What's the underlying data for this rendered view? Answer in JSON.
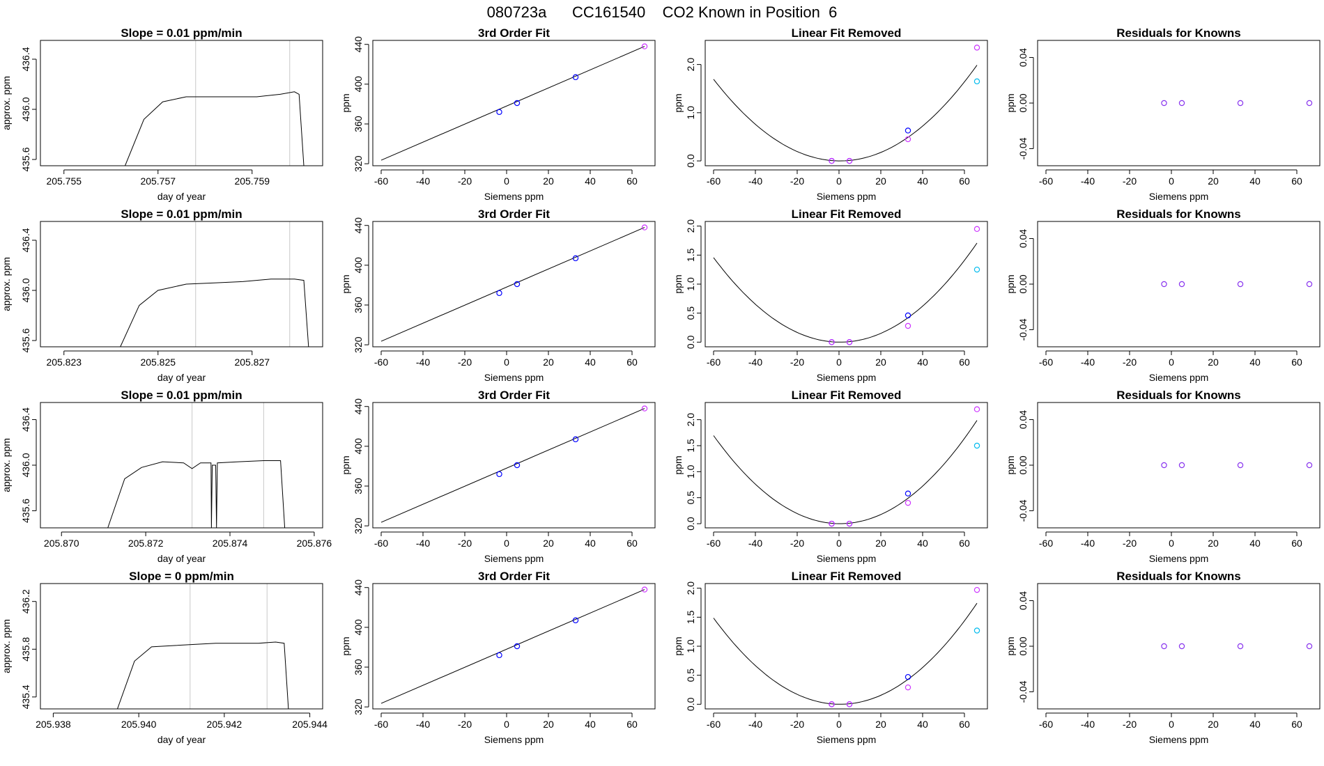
{
  "figure_title": "080723a      CC161540    CO2 Known in Position  6",
  "chart_data": [
    {
      "type": "line",
      "title": "Slope =  0.01  ppm/min",
      "xlabel": "day of year",
      "ylabel": "approx. ppm",
      "xlim": [
        205.7545,
        205.7605
      ],
      "ylim": [
        435.55,
        436.55
      ],
      "xticks": [
        205.755,
        205.757,
        205.759
      ],
      "xtick_labels": [
        "205.755",
        "205.757",
        "205.759"
      ],
      "yticks": [
        435.6,
        436.0,
        436.4
      ],
      "ytick_labels": [
        "435.6",
        "436.0",
        "436.4"
      ],
      "vlines": [
        205.7578,
        205.7598
      ],
      "series": [
        {
          "x": [
            205.7563,
            205.7567,
            205.7571,
            205.7576,
            205.7581,
            205.7586,
            205.7591,
            205.7596,
            205.7599,
            205.76,
            205.7601
          ],
          "y": [
            435.55,
            435.92,
            436.06,
            436.1,
            436.1,
            436.1,
            436.1,
            436.12,
            436.14,
            436.12,
            435.55
          ]
        }
      ]
    },
    {
      "type": "scatter",
      "title": "3rd Order Fit",
      "xlabel": "Siemens ppm",
      "ylabel": "ppm",
      "xlim": [
        -64,
        71
      ],
      "ylim": [
        318,
        444
      ],
      "xticks": [
        -60,
        -40,
        -20,
        0,
        20,
        40,
        60
      ],
      "xtick_labels": [
        "-60",
        "-40",
        "-20",
        "0",
        "20",
        "40",
        "60"
      ],
      "yticks": [
        320,
        360,
        400,
        440
      ],
      "ytick_labels": [
        "320",
        "360",
        "400",
        "440"
      ],
      "curve": {
        "x": [
          -60,
          66
        ],
        "y": [
          323.5,
          438
        ]
      },
      "points": [
        {
          "x": -3.5,
          "y": 372,
          "color": "#0000ff"
        },
        {
          "x": 5,
          "y": 381,
          "color": "#0000ff"
        },
        {
          "x": 33,
          "y": 407,
          "color": "#0000ff"
        },
        {
          "x": 66,
          "y": 438,
          "color": "#cc33ff"
        }
      ]
    },
    {
      "type": "scatter",
      "title": "Linear Fit Removed",
      "xlabel": "Siemens ppm",
      "ylabel": "ppm",
      "xlim": [
        -64,
        71
      ],
      "ylim": [
        -0.1,
        2.5
      ],
      "xticks": [
        -60,
        -40,
        -20,
        0,
        20,
        40,
        60
      ],
      "xtick_labels": [
        "-60",
        "-40",
        "-20",
        "0",
        "20",
        "40",
        "60"
      ],
      "yticks": [
        0.0,
        1.0,
        2.0
      ],
      "ytick_labels": [
        "0.0",
        "1.0",
        "2.0"
      ],
      "curve": {
        "a": 0.000463,
        "vertex": 0.5,
        "x": [
          -60,
          66
        ]
      },
      "points": [
        {
          "x": -3.5,
          "y": 0.0,
          "color": "#0000ff"
        },
        {
          "x": -3.5,
          "y": 0.0,
          "color": "#cc33ff"
        },
        {
          "x": 5,
          "y": 0.0,
          "color": "#0000ff"
        },
        {
          "x": 5,
          "y": 0.0,
          "color": "#cc33ff"
        },
        {
          "x": 33,
          "y": 0.63,
          "color": "#0000ff"
        },
        {
          "x": 33,
          "y": 0.45,
          "color": "#cc33ff"
        },
        {
          "x": 66,
          "y": 2.35,
          "color": "#cc33ff"
        },
        {
          "x": 66,
          "y": 1.65,
          "color": "#00bbee"
        }
      ]
    },
    {
      "type": "scatter",
      "title": "Residuals for Knowns",
      "xlabel": "Siemens ppm",
      "ylabel": "ppm",
      "xlim": [
        -64,
        71
      ],
      "ylim": [
        -0.055,
        0.055
      ],
      "xticks": [
        -60,
        -40,
        -20,
        0,
        20,
        40,
        60
      ],
      "xtick_labels": [
        "-60",
        "-40",
        "-20",
        "0",
        "20",
        "40",
        "60"
      ],
      "yticks": [
        -0.04,
        0.0,
        0.04
      ],
      "ytick_labels": [
        "-0.04",
        "0.00",
        "0.04"
      ],
      "points": [
        {
          "x": -3.5,
          "y": 0,
          "color": "#8833ee"
        },
        {
          "x": 5,
          "y": 0,
          "color": "#8833ee"
        },
        {
          "x": 33,
          "y": 0,
          "color": "#8833ee"
        },
        {
          "x": 66,
          "y": 0,
          "color": "#8833ee"
        }
      ]
    },
    {
      "type": "line",
      "title": "Slope =  0.01  ppm/min",
      "xlabel": "day of year",
      "ylabel": "approx. ppm",
      "xlim": [
        205.8225,
        205.8285
      ],
      "ylim": [
        435.55,
        436.55
      ],
      "xticks": [
        205.823,
        205.825,
        205.827
      ],
      "xtick_labels": [
        "205.823",
        "205.825",
        "205.827"
      ],
      "yticks": [
        435.6,
        436.0,
        436.4
      ],
      "ytick_labels": [
        "435.6",
        "436.0",
        "436.4"
      ],
      "vlines": [
        205.8258,
        205.8278
      ],
      "series": [
        {
          "x": [
            205.8242,
            205.8246,
            205.825,
            205.8256,
            205.8262,
            205.8268,
            205.8274,
            205.8279,
            205.8281,
            205.8282
          ],
          "y": [
            435.55,
            435.88,
            436.0,
            436.05,
            436.06,
            436.07,
            436.09,
            436.09,
            436.08,
            435.55
          ]
        }
      ]
    },
    {
      "type": "scatter",
      "title": "3rd Order Fit",
      "xlabel": "Siemens ppm",
      "ylabel": "ppm",
      "xlim": [
        -64,
        71
      ],
      "ylim": [
        318,
        444
      ],
      "xticks": [
        -60,
        -40,
        -20,
        0,
        20,
        40,
        60
      ],
      "xtick_labels": [
        "-60",
        "-40",
        "-20",
        "0",
        "20",
        "40",
        "60"
      ],
      "yticks": [
        320,
        360,
        400,
        440
      ],
      "ytick_labels": [
        "320",
        "360",
        "400",
        "440"
      ],
      "curve": {
        "x": [
          -60,
          66
        ],
        "y": [
          323.5,
          438
        ]
      },
      "points": [
        {
          "x": -3.5,
          "y": 372,
          "color": "#0000ff"
        },
        {
          "x": 5,
          "y": 381,
          "color": "#0000ff"
        },
        {
          "x": 33,
          "y": 407,
          "color": "#0000ff"
        },
        {
          "x": 66,
          "y": 438,
          "color": "#cc33ff"
        }
      ]
    },
    {
      "type": "scatter",
      "title": "Linear Fit Removed",
      "xlabel": "Siemens ppm",
      "ylabel": "ppm",
      "xlim": [
        -64,
        71
      ],
      "ylim": [
        -0.08,
        2.08
      ],
      "xticks": [
        -60,
        -40,
        -20,
        0,
        20,
        40,
        60
      ],
      "xtick_labels": [
        "-60",
        "-40",
        "-20",
        "0",
        "20",
        "40",
        "60"
      ],
      "yticks": [
        0.0,
        0.5,
        1.0,
        1.5,
        2.0
      ],
      "ytick_labels": [
        "0.0",
        "0.5",
        "1.0",
        "1.5",
        "2.0"
      ],
      "curve": {
        "a": 0.000398,
        "vertex": 0.5,
        "x": [
          -60,
          66
        ]
      },
      "points": [
        {
          "x": -3.5,
          "y": 0.0,
          "color": "#0000ff"
        },
        {
          "x": -3.5,
          "y": 0.0,
          "color": "#cc33ff"
        },
        {
          "x": 5,
          "y": 0.0,
          "color": "#0000ff"
        },
        {
          "x": 5,
          "y": 0.0,
          "color": "#cc33ff"
        },
        {
          "x": 33,
          "y": 0.46,
          "color": "#0000ff"
        },
        {
          "x": 33,
          "y": 0.28,
          "color": "#cc33ff"
        },
        {
          "x": 66,
          "y": 1.95,
          "color": "#cc33ff"
        },
        {
          "x": 66,
          "y": 1.25,
          "color": "#00bbee"
        }
      ]
    },
    {
      "type": "scatter",
      "title": "Residuals for Knowns",
      "xlabel": "Siemens ppm",
      "ylabel": "ppm",
      "xlim": [
        -64,
        71
      ],
      "ylim": [
        -0.055,
        0.055
      ],
      "xticks": [
        -60,
        -40,
        -20,
        0,
        20,
        40,
        60
      ],
      "xtick_labels": [
        "-60",
        "-40",
        "-20",
        "0",
        "20",
        "40",
        "60"
      ],
      "yticks": [
        -0.04,
        0.0,
        0.04
      ],
      "ytick_labels": [
        "-0.04",
        "0.00",
        "0.04"
      ],
      "points": [
        {
          "x": -3.5,
          "y": 0,
          "color": "#8833ee"
        },
        {
          "x": 5,
          "y": 0,
          "color": "#8833ee"
        },
        {
          "x": 33,
          "y": 0,
          "color": "#8833ee"
        },
        {
          "x": 66,
          "y": 0,
          "color": "#8833ee"
        }
      ]
    },
    {
      "type": "line",
      "title": "Slope =  0.01  ppm/min",
      "xlabel": "day of year",
      "ylabel": "approx. ppm",
      "xlim": [
        205.8695,
        205.8762
      ],
      "ylim": [
        435.45,
        436.55
      ],
      "xticks": [
        205.87,
        205.872,
        205.874,
        205.876
      ],
      "xtick_labels": [
        "205.870",
        "205.872",
        "205.874",
        "205.876"
      ],
      "yticks": [
        435.6,
        436.0,
        436.4
      ],
      "ytick_labels": [
        "435.6",
        "436.0",
        "436.4"
      ],
      "vlines": [
        205.8731,
        205.8748
      ],
      "series": [
        {
          "x": [
            205.8711,
            205.8715,
            205.8719,
            205.8724,
            205.8729,
            205.8731,
            205.8733,
            205.87355,
            205.87356,
            205.87358,
            205.87366,
            205.87368,
            205.8737,
            205.8742,
            205.8748,
            205.8752,
            205.8753
          ],
          "y": [
            435.45,
            435.88,
            435.98,
            436.03,
            436.02,
            435.97,
            436.02,
            436.02,
            435.45,
            436.0,
            436.0,
            435.45,
            436.02,
            436.03,
            436.04,
            436.04,
            435.45
          ]
        }
      ]
    },
    {
      "type": "scatter",
      "title": "3rd Order Fit",
      "xlabel": "Siemens ppm",
      "ylabel": "ppm",
      "xlim": [
        -64,
        71
      ],
      "ylim": [
        318,
        444
      ],
      "xticks": [
        -60,
        -40,
        -20,
        0,
        20,
        40,
        60
      ],
      "xtick_labels": [
        "-60",
        "-40",
        "-20",
        "0",
        "20",
        "40",
        "60"
      ],
      "yticks": [
        320,
        360,
        400,
        440
      ],
      "ytick_labels": [
        "320",
        "360",
        "400",
        "440"
      ],
      "curve": {
        "x": [
          -60,
          66
        ],
        "y": [
          323.5,
          438
        ]
      },
      "points": [
        {
          "x": -3.5,
          "y": 372,
          "color": "#0000ff"
        },
        {
          "x": 5,
          "y": 381,
          "color": "#0000ff"
        },
        {
          "x": 33,
          "y": 407,
          "color": "#0000ff"
        },
        {
          "x": 66,
          "y": 438,
          "color": "#cc33ff"
        }
      ]
    },
    {
      "type": "scatter",
      "title": "Linear Fit Removed",
      "xlabel": "Siemens ppm",
      "ylabel": "ppm",
      "xlim": [
        -64,
        71
      ],
      "ylim": [
        -0.08,
        2.33
      ],
      "xticks": [
        -60,
        -40,
        -20,
        0,
        20,
        40,
        60
      ],
      "xtick_labels": [
        "-60",
        "-40",
        "-20",
        "0",
        "20",
        "40",
        "60"
      ],
      "yticks": [
        0.0,
        0.5,
        1.0,
        1.5,
        2.0
      ],
      "ytick_labels": [
        "0.0",
        "0.5",
        "1.0",
        "1.5",
        "2.0"
      ],
      "curve": {
        "a": 0.000463,
        "vertex": 0.5,
        "x": [
          -60,
          66
        ]
      },
      "points": [
        {
          "x": -3.5,
          "y": 0.0,
          "color": "#0000ff"
        },
        {
          "x": -3.5,
          "y": 0.0,
          "color": "#cc33ff"
        },
        {
          "x": 5,
          "y": 0.0,
          "color": "#0000ff"
        },
        {
          "x": 5,
          "y": 0.0,
          "color": "#cc33ff"
        },
        {
          "x": 33,
          "y": 0.58,
          "color": "#0000ff"
        },
        {
          "x": 33,
          "y": 0.4,
          "color": "#cc33ff"
        },
        {
          "x": 66,
          "y": 2.2,
          "color": "#cc33ff"
        },
        {
          "x": 66,
          "y": 1.5,
          "color": "#00bbee"
        }
      ]
    },
    {
      "type": "scatter",
      "title": "Residuals for Knowns",
      "xlabel": "Siemens ppm",
      "ylabel": "ppm",
      "xlim": [
        -64,
        71
      ],
      "ylim": [
        -0.055,
        0.055
      ],
      "xticks": [
        -60,
        -40,
        -20,
        0,
        20,
        40,
        60
      ],
      "xtick_labels": [
        "-60",
        "-40",
        "-20",
        "0",
        "20",
        "40",
        "60"
      ],
      "yticks": [
        -0.04,
        0.0,
        0.04
      ],
      "ytick_labels": [
        "-0.04",
        "0.00",
        "0.04"
      ],
      "points": [
        {
          "x": -3.5,
          "y": 0,
          "color": "#8833ee"
        },
        {
          "x": 5,
          "y": 0,
          "color": "#8833ee"
        },
        {
          "x": 33,
          "y": 0,
          "color": "#8833ee"
        },
        {
          "x": 66,
          "y": 0,
          "color": "#8833ee"
        }
      ]
    },
    {
      "type": "line",
      "title": "Slope =  0  ppm/min",
      "xlabel": "day of year",
      "ylabel": "approx. ppm",
      "xlim": [
        205.9377,
        205.9443
      ],
      "ylim": [
        435.3,
        436.35
      ],
      "xticks": [
        205.938,
        205.94,
        205.942,
        205.944
      ],
      "xtick_labels": [
        "205.938",
        "205.940",
        "205.942",
        "205.944"
      ],
      "yticks": [
        435.4,
        435.8,
        436.2
      ],
      "ytick_labels": [
        "435.4",
        "435.8",
        "436.2"
      ],
      "vlines": [
        205.9412,
        205.943
      ],
      "series": [
        {
          "x": [
            205.9395,
            205.9399,
            205.9403,
            205.9408,
            205.9413,
            205.9418,
            205.9423,
            205.9428,
            205.9432,
            205.9434,
            205.9435
          ],
          "y": [
            435.3,
            435.7,
            435.82,
            435.83,
            435.84,
            435.85,
            435.85,
            435.85,
            435.86,
            435.85,
            435.3
          ]
        }
      ]
    },
    {
      "type": "scatter",
      "title": "3rd Order Fit",
      "xlabel": "Siemens ppm",
      "ylabel": "ppm",
      "xlim": [
        -64,
        71
      ],
      "ylim": [
        318,
        444
      ],
      "xticks": [
        -60,
        -40,
        -20,
        0,
        20,
        40,
        60
      ],
      "xtick_labels": [
        "-60",
        "-40",
        "-20",
        "0",
        "20",
        "40",
        "60"
      ],
      "yticks": [
        320,
        360,
        400,
        440
      ],
      "ytick_labels": [
        "320",
        "360",
        "400",
        "440"
      ],
      "curve": {
        "x": [
          -60,
          66
        ],
        "y": [
          323.5,
          438
        ]
      },
      "points": [
        {
          "x": -3.5,
          "y": 372,
          "color": "#0000ff"
        },
        {
          "x": 5,
          "y": 381,
          "color": "#0000ff"
        },
        {
          "x": 33,
          "y": 407,
          "color": "#0000ff"
        },
        {
          "x": 66,
          "y": 438,
          "color": "#cc33ff"
        }
      ]
    },
    {
      "type": "scatter",
      "title": "Linear Fit Removed",
      "xlabel": "Siemens ppm",
      "ylabel": "ppm",
      "xlim": [
        -64,
        71
      ],
      "ylim": [
        -0.08,
        2.08
      ],
      "xticks": [
        -60,
        -40,
        -20,
        0,
        20,
        40,
        60
      ],
      "xtick_labels": [
        "-60",
        "-40",
        "-20",
        "0",
        "20",
        "40",
        "60"
      ],
      "yticks": [
        0.0,
        0.5,
        1.0,
        1.5,
        2.0
      ],
      "ytick_labels": [
        "0.0",
        "0.5",
        "1.0",
        "1.5",
        "2.0"
      ],
      "curve": {
        "a": 0.000406,
        "vertex": 0.5,
        "x": [
          -60,
          66
        ]
      },
      "points": [
        {
          "x": -3.5,
          "y": 0.0,
          "color": "#0000ff"
        },
        {
          "x": -3.5,
          "y": 0.0,
          "color": "#cc33ff"
        },
        {
          "x": 5,
          "y": 0.0,
          "color": "#0000ff"
        },
        {
          "x": 5,
          "y": 0.0,
          "color": "#cc33ff"
        },
        {
          "x": 33,
          "y": 0.47,
          "color": "#0000ff"
        },
        {
          "x": 33,
          "y": 0.29,
          "color": "#cc33ff"
        },
        {
          "x": 66,
          "y": 1.97,
          "color": "#cc33ff"
        },
        {
          "x": 66,
          "y": 1.27,
          "color": "#00bbee"
        }
      ]
    },
    {
      "type": "scatter",
      "title": "Residuals for Knowns",
      "xlabel": "Siemens ppm",
      "ylabel": "ppm",
      "xlim": [
        -64,
        71
      ],
      "ylim": [
        -0.055,
        0.055
      ],
      "xticks": [
        -60,
        -40,
        -20,
        0,
        20,
        40,
        60
      ],
      "xtick_labels": [
        "-60",
        "-40",
        "-20",
        "0",
        "20",
        "40",
        "60"
      ],
      "yticks": [
        -0.04,
        0.0,
        0.04
      ],
      "ytick_labels": [
        "-0.04",
        "0.00",
        "0.04"
      ],
      "points": [
        {
          "x": -3.5,
          "y": 0,
          "color": "#8833ee"
        },
        {
          "x": 5,
          "y": 0,
          "color": "#8833ee"
        },
        {
          "x": 33,
          "y": 0,
          "color": "#8833ee"
        },
        {
          "x": 66,
          "y": 0,
          "color": "#8833ee"
        }
      ]
    }
  ]
}
